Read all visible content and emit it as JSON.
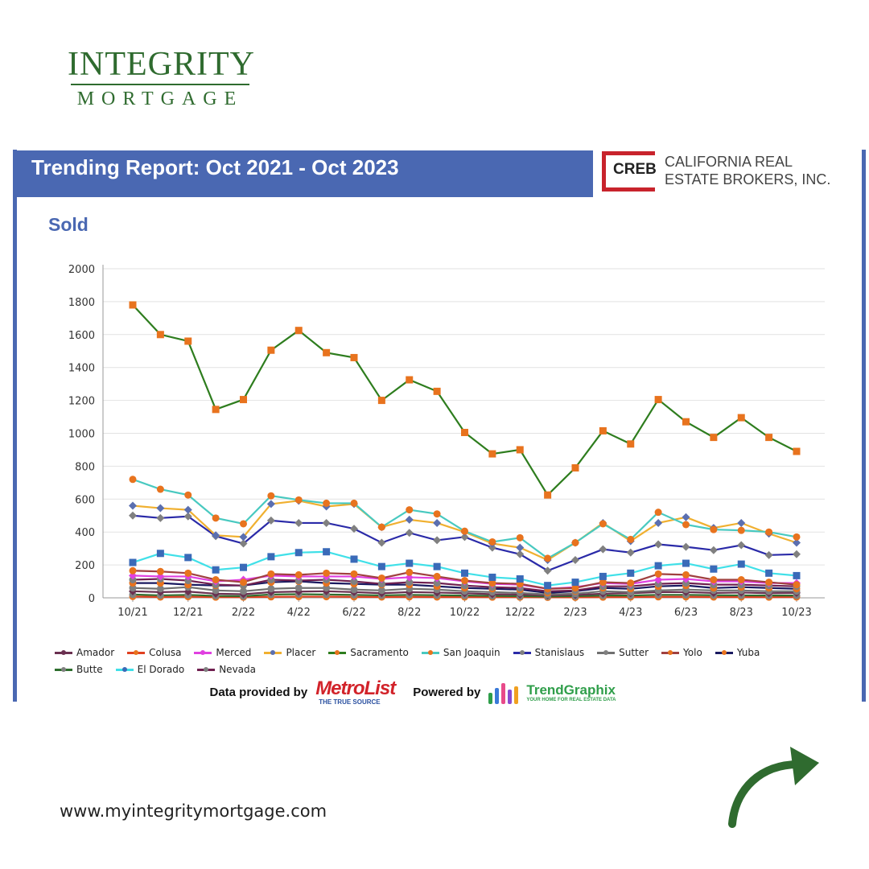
{
  "brand": {
    "line1": "INTEGRITY",
    "line2": "MORTGAGE"
  },
  "report_title": "Trending Report: Oct 2021 - Oct 2023",
  "creb": {
    "mark": "CREB",
    "name_line1": "CALIFORNIA REAL",
    "name_line2": "ESTATE BROKERS, INC."
  },
  "section": "Sold",
  "credits": {
    "data_by": "Data provided by",
    "metrolist": "MetroList",
    "metrolist_tag": "THE TRUE SOURCE",
    "powered_by": "Powered by",
    "trendgraphix": "TrendGraphix",
    "trendgraphix_tag": "YOUR HOME FOR REAL ESTATE DATA"
  },
  "website": "www.myintegritymortgage.com",
  "chart_data": {
    "type": "line",
    "title": "Sold",
    "xlabel": "",
    "ylabel": "",
    "ylim": [
      0,
      2000
    ],
    "yticks": [
      0,
      200,
      400,
      600,
      800,
      1000,
      1200,
      1400,
      1600,
      1800,
      2000
    ],
    "x": [
      "10/21",
      "11/21",
      "12/21",
      "1/22",
      "2/22",
      "3/22",
      "4/22",
      "5/22",
      "6/22",
      "7/22",
      "8/22",
      "9/22",
      "10/22",
      "11/22",
      "12/22",
      "1/23",
      "2/23",
      "3/23",
      "4/23",
      "5/23",
      "6/23",
      "7/23",
      "8/23",
      "9/23",
      "10/23"
    ],
    "xticks": [
      "10/21",
      "12/21",
      "2/22",
      "4/22",
      "6/22",
      "8/22",
      "10/22",
      "12/22",
      "2/23",
      "4/23",
      "6/23",
      "8/23",
      "10/23"
    ],
    "grid": true,
    "legend_position": "bottom",
    "series": [
      {
        "name": "Amador",
        "line": "#6a3050",
        "marker": "#6a3050",
        "shape": "diamond",
        "values": [
          40,
          35,
          38,
          25,
          22,
          35,
          38,
          40,
          35,
          28,
          35,
          32,
          28,
          22,
          20,
          15,
          18,
          25,
          28,
          35,
          35,
          30,
          32,
          28,
          30
        ]
      },
      {
        "name": "Colusa",
        "line": "#e04020",
        "marker": "#e8731e",
        "shape": "circle",
        "values": [
          8,
          5,
          7,
          4,
          4,
          6,
          7,
          7,
          6,
          5,
          6,
          5,
          5,
          4,
          4,
          3,
          3,
          4,
          5,
          6,
          6,
          5,
          5,
          4,
          5
        ]
      },
      {
        "name": "Merced",
        "line": "#e040e0",
        "marker": "#e040e0",
        "shape": "diamond",
        "values": [
          135,
          130,
          130,
          100,
          110,
          135,
          130,
          130,
          130,
          115,
          125,
          120,
          100,
          85,
          80,
          55,
          65,
          90,
          85,
          110,
          115,
          100,
          100,
          90,
          90
        ]
      },
      {
        "name": "Placer",
        "line": "#f0b030",
        "marker": "#5b6fb0",
        "shape": "diamond",
        "values": [
          560,
          545,
          535,
          380,
          370,
          570,
          590,
          555,
          570,
          430,
          475,
          455,
          400,
          330,
          305,
          230,
          335,
          455,
          345,
          455,
          490,
          425,
          455,
          390,
          335
        ]
      },
      {
        "name": "Sacramento",
        "line": "#2e7d1e",
        "marker": "#e8731e",
        "shape": "square",
        "values": [
          1780,
          1600,
          1560,
          1145,
          1205,
          1505,
          1625,
          1490,
          1460,
          1200,
          1325,
          1255,
          1005,
          875,
          900,
          625,
          790,
          1015,
          935,
          1205,
          1070,
          975,
          1095,
          975,
          890
        ]
      },
      {
        "name": "San Joaquin",
        "line": "#48c9c0",
        "marker": "#e8731e",
        "shape": "circle",
        "values": [
          720,
          660,
          625,
          485,
          450,
          620,
          595,
          575,
          575,
          430,
          535,
          510,
          405,
          340,
          365,
          240,
          335,
          450,
          355,
          520,
          445,
          415,
          410,
          400,
          370
        ]
      },
      {
        "name": "Stanislaus",
        "line": "#2a2aa8",
        "marker": "#808080",
        "shape": "diamond",
        "values": [
          500,
          485,
          495,
          375,
          330,
          470,
          455,
          455,
          420,
          335,
          395,
          350,
          370,
          305,
          265,
          165,
          230,
          295,
          275,
          325,
          310,
          290,
          320,
          260,
          265
        ]
      },
      {
        "name": "Sutter",
        "line": "#707070",
        "marker": "#808080",
        "shape": "circle",
        "values": [
          60,
          55,
          65,
          45,
          40,
          55,
          60,
          60,
          50,
          45,
          55,
          50,
          40,
          35,
          30,
          20,
          25,
          40,
          35,
          45,
          50,
          45,
          45,
          40,
          40
        ]
      },
      {
        "name": "Yolo",
        "line": "#a04040",
        "marker": "#e8731e",
        "shape": "circle",
        "values": [
          165,
          160,
          150,
          110,
          95,
          145,
          140,
          150,
          145,
          120,
          155,
          130,
          105,
          90,
          85,
          55,
          60,
          95,
          90,
          145,
          140,
          110,
          110,
          95,
          80
        ]
      },
      {
        "name": "Yuba",
        "line": "#1a1a60",
        "marker": "#e8731e",
        "shape": "circle",
        "values": [
          90,
          90,
          80,
          75,
          75,
          95,
          100,
          90,
          85,
          80,
          80,
          70,
          60,
          55,
          50,
          30,
          40,
          60,
          55,
          70,
          75,
          60,
          65,
          60,
          55
        ]
      },
      {
        "name": "Butte",
        "line": "#2e6e2e",
        "marker": "#808080",
        "shape": "circle",
        "values": [
          20,
          15,
          18,
          12,
          10,
          20,
          22,
          20,
          18,
          15,
          18,
          16,
          14,
          12,
          10,
          8,
          10,
          14,
          14,
          18,
          18,
          16,
          15,
          14,
          14
        ]
      },
      {
        "name": "El Dorado",
        "line": "#40e0e8",
        "marker": "#3a6ab8",
        "shape": "square",
        "values": [
          215,
          270,
          245,
          170,
          185,
          250,
          275,
          280,
          235,
          190,
          210,
          190,
          150,
          125,
          115,
          75,
          95,
          130,
          150,
          195,
          210,
          175,
          205,
          150,
          135
        ]
      },
      {
        "name": "Nevada",
        "line": "#702050",
        "marker": "#808080",
        "shape": "circle",
        "values": [
          110,
          115,
          105,
          80,
          75,
          110,
          105,
          110,
          100,
          85,
          95,
          90,
          75,
          65,
          60,
          40,
          45,
          70,
          70,
          85,
          90,
          80,
          80,
          75,
          70
        ]
      }
    ]
  }
}
